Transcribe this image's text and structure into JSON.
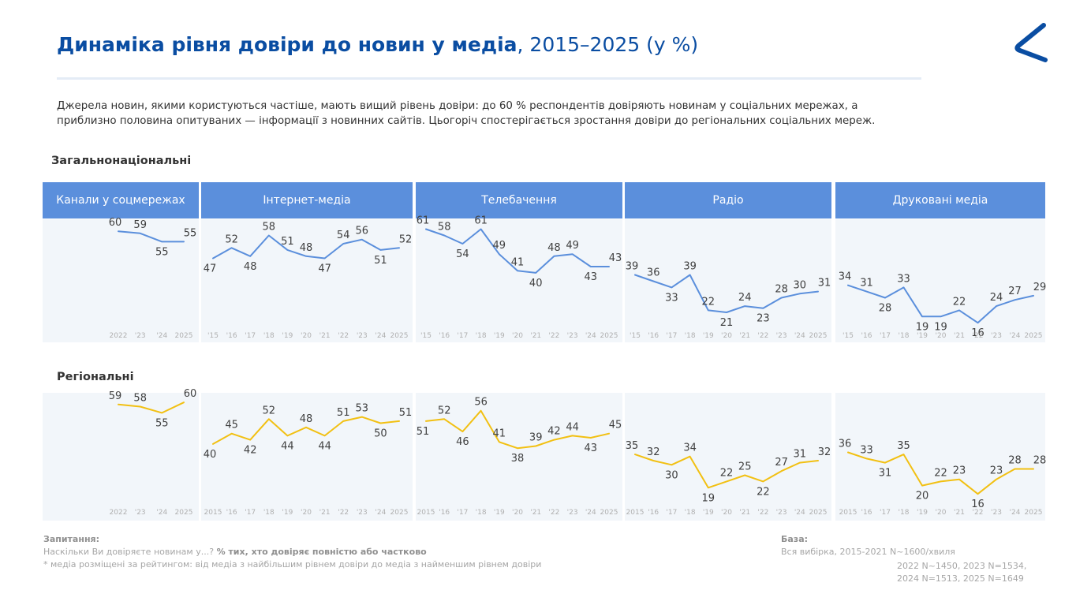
{
  "title": {
    "bold": "Динаміка рівня довіри до новин у медіа",
    "rest": ", 2015–2025 (у %)"
  },
  "description": {
    "line1": "Джерела новин, якими користуються частіше, мають вищий рівень довіри: до 60 % респондентів довіряють новинам у соціальних мережах, а",
    "line2": "приблизно половина опитуваних — інформації з новинних сайтів. Цьогоріч спостерігається зростання довіри до регіональних соціальних мереж."
  },
  "sections": {
    "national": "Загальнонаціональні",
    "regional": "Регіональні"
  },
  "categories": [
    "Канали у соцмережах",
    "Інтернет-медіа",
    "Телебачення",
    "Радіо",
    "Друковані медіа"
  ],
  "colors": {
    "national": "#5b8fdc",
    "regional": "#f2c012",
    "header": "#5b8fdc",
    "panel": "#f2f6fa",
    "title": "#0a4da2"
  },
  "chart_data": [
    {
      "type": "line",
      "title": "Канали у соцмережах",
      "group": "Загальнонаціональні",
      "x": [
        "2022",
        "'23",
        "'24",
        "2025"
      ],
      "values": [
        60,
        59,
        55,
        55
      ],
      "ylim": [
        10,
        65
      ]
    },
    {
      "type": "line",
      "title": "Інтернет-медіа",
      "group": "Загальнонаціональні",
      "x": [
        "'15",
        "'16",
        "'17",
        "'18",
        "'19",
        "'20",
        "'21",
        "'22",
        "'23",
        "'24",
        "2025"
      ],
      "values": [
        47,
        52,
        48,
        58,
        51,
        48,
        47,
        54,
        56,
        51,
        52
      ],
      "ylim": [
        10,
        65
      ]
    },
    {
      "type": "line",
      "title": "Телебачення",
      "group": "Загальнонаціональні",
      "x": [
        "'15",
        "'16",
        "'17",
        "'18",
        "'19",
        "'20",
        "'21",
        "'22",
        "'23",
        "'24",
        "2025"
      ],
      "values": [
        61,
        58,
        54,
        61,
        49,
        41,
        40,
        48,
        49,
        43,
        43
      ],
      "ylim": [
        10,
        65
      ]
    },
    {
      "type": "line",
      "title": "Радіо",
      "group": "Загальнонаціональні",
      "x": [
        "'15",
        "'16",
        "'17",
        "'18",
        "'19",
        "'20",
        "'21",
        "'22",
        "'23",
        "'24",
        "2025"
      ],
      "values": [
        39,
        36,
        33,
        39,
        22,
        21,
        24,
        23,
        28,
        30,
        31
      ],
      "ylim": [
        10,
        65
      ]
    },
    {
      "type": "line",
      "title": "Друковані медіа",
      "group": "Загальнонаціональні",
      "x": [
        "'15",
        "'16",
        "'17",
        "'18",
        "'19",
        "'20",
        "'21",
        "'22",
        "'23",
        "'24",
        "2025"
      ],
      "values": [
        34,
        31,
        28,
        33,
        19,
        19,
        22,
        16,
        24,
        27,
        29
      ],
      "ylim": [
        10,
        65
      ]
    },
    {
      "type": "line",
      "title": "Канали у соцмережах",
      "group": "Регіональні",
      "x": [
        "2022",
        "'23",
        "'24",
        "2025"
      ],
      "values": [
        59,
        58,
        55,
        60
      ],
      "ylim": [
        10,
        65
      ]
    },
    {
      "type": "line",
      "title": "Інтернет-медіа",
      "group": "Регіональні",
      "x": [
        "2015",
        "'16",
        "'17",
        "'18",
        "'19",
        "'20",
        "'21",
        "'22",
        "'23",
        "'24",
        "2025"
      ],
      "values": [
        40,
        45,
        42,
        52,
        44,
        48,
        44,
        51,
        53,
        50,
        51
      ],
      "ylim": [
        10,
        65
      ]
    },
    {
      "type": "line",
      "title": "Телебачення",
      "group": "Регіональні",
      "x": [
        "2015",
        "'16",
        "'17",
        "'18",
        "'19",
        "'20",
        "'21",
        "'22",
        "'23",
        "'24",
        "2025"
      ],
      "values": [
        51,
        52,
        46,
        56,
        41,
        38,
        39,
        42,
        44,
        43,
        45
      ],
      "ylim": [
        10,
        65
      ]
    },
    {
      "type": "line",
      "title": "Радіо",
      "group": "Регіональні",
      "x": [
        "2015",
        "'16",
        "'17",
        "'18",
        "'19",
        "'20",
        "'21",
        "'22",
        "'23",
        "'24",
        "2025"
      ],
      "values": [
        35,
        32,
        30,
        34,
        19,
        22,
        25,
        22,
        27,
        31,
        32
      ],
      "ylim": [
        10,
        65
      ]
    },
    {
      "type": "line",
      "title": "Друковані медіа",
      "group": "Регіональні",
      "x": [
        "2015",
        "'16",
        "'17",
        "'18",
        "'19",
        "'20",
        "'21",
        "'22",
        "'23",
        "'24",
        "2025"
      ],
      "values": [
        36,
        33,
        31,
        35,
        20,
        22,
        23,
        16,
        23,
        28,
        28
      ],
      "ylim": [
        10,
        65
      ]
    }
  ],
  "footer": {
    "question_label": "Запитання:",
    "question_text": "Наскільки Ви довіряєте новинам у...? ",
    "question_bold": "% тих, хто довіряє повністю або частково",
    "note": "* медіа розміщені за рейтингом: від медіа з найбільшим рівнем довіри до медіа з найменшим рівнем довіри",
    "base_label": "База:",
    "base_line1": "Вся вибірка, 2015-2021  N~1600/хвиля",
    "base_line2": "2022  N~1450, 2023  N=1534,",
    "base_line3": "2024  N=1513, 2025  N=1649"
  }
}
